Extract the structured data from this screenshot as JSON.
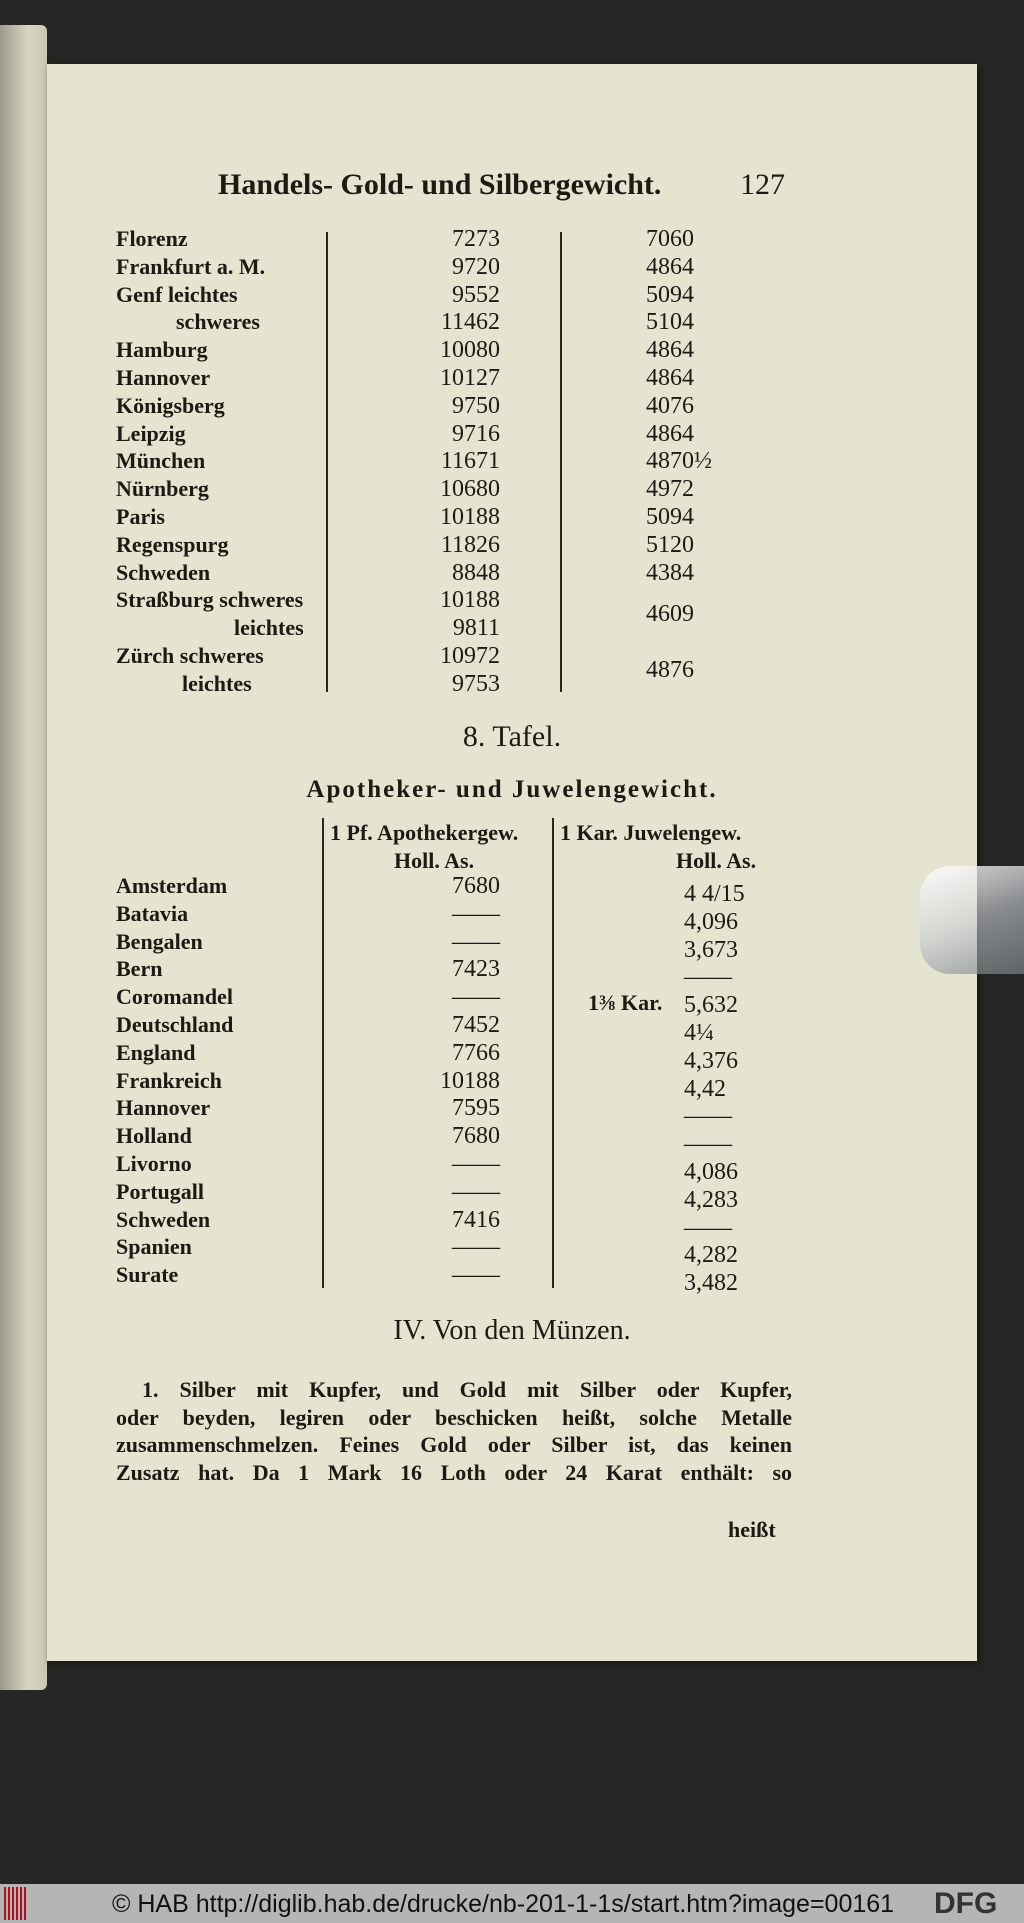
{
  "header": {
    "title": "Handels- Gold- und Silbergewicht.",
    "page_number": "127"
  },
  "table1": {
    "rows": [
      {
        "name": "Florenz",
        "v1": "7273",
        "v2": "7060"
      },
      {
        "name": "Frankfurt a. M.",
        "v1": "9720",
        "v2": "4864"
      },
      {
        "name": "Genf leichtes",
        "v1": "9552",
        "v2": "5094"
      },
      {
        "name": "schweres",
        "v1": "11462",
        "v2": "5104"
      },
      {
        "name": "Hamburg",
        "v1": "10080",
        "v2": "4864"
      },
      {
        "name": "Hannover",
        "v1": "10127",
        "v2": "4864"
      },
      {
        "name": "Königsberg",
        "v1": "9750",
        "v2": "4076"
      },
      {
        "name": "Leipzig",
        "v1": "9716",
        "v2": "4864"
      },
      {
        "name": "München",
        "v1": "11671",
        "v2": "4870½"
      },
      {
        "name": "Nürnberg",
        "v1": "10680",
        "v2": "4972"
      },
      {
        "name": "Paris",
        "v1": "10188",
        "v2": "5094"
      },
      {
        "name": "Regenspurg",
        "v1": "11826",
        "v2": "5120"
      },
      {
        "name": "Schweden",
        "v1": "8848",
        "v2": "4384"
      },
      {
        "name": "Straßburg schweres",
        "v1": "10188",
        "v2": "4609"
      },
      {
        "name": "leichtes",
        "v1": "9811",
        "v2": ""
      },
      {
        "name": "Zürch schweres",
        "v1": "10972",
        "v2": "4876"
      },
      {
        "name": "leichtes",
        "v1": "9753",
        "v2": ""
      }
    ]
  },
  "table2": {
    "number_title": "8. Tafel.",
    "title": "Apotheker- und Juwelengewicht.",
    "col1_header": "1 Pf. Apothekergew.",
    "col1_unit": "Holl. As.",
    "col2_header": "1 Kar. Juwelengew.",
    "col2_unit": "Holl. As.",
    "rows": [
      {
        "name": "Amsterdam",
        "v1": "7680",
        "prefix": "",
        "v2": "4 4/15"
      },
      {
        "name": "Batavia",
        "v1": "——",
        "prefix": "",
        "v2": "4,096"
      },
      {
        "name": "Bengalen",
        "v1": "——",
        "prefix": "",
        "v2": "3,673"
      },
      {
        "name": "Bern",
        "v1": "7423",
        "prefix": "",
        "v2": "——"
      },
      {
        "name": "Coromandel",
        "v1": "——",
        "prefix": "1⅜ Kar.",
        "v2": "5,632"
      },
      {
        "name": "Deutschland",
        "v1": "7452",
        "prefix": "",
        "v2": "4¼"
      },
      {
        "name": "England",
        "v1": "7766",
        "prefix": "",
        "v2": "4,376"
      },
      {
        "name": "Frankreich",
        "v1": "10188",
        "prefix": "",
        "v2": "4,42"
      },
      {
        "name": "Hannover",
        "v1": "7595",
        "prefix": "",
        "v2": "——"
      },
      {
        "name": "Holland",
        "v1": "7680",
        "prefix": "",
        "v2": "——"
      },
      {
        "name": "Livorno",
        "v1": "——",
        "prefix": "",
        "v2": "4,086"
      },
      {
        "name": "Portugall",
        "v1": "——",
        "prefix": "",
        "v2": "4,283"
      },
      {
        "name": "Schweden",
        "v1": "7416",
        "prefix": "",
        "v2": "——"
      },
      {
        "name": "Spanien",
        "v1": "——",
        "prefix": "",
        "v2": "4,282"
      },
      {
        "name": "Surate",
        "v1": "——",
        "prefix": "",
        "v2": "3,482"
      }
    ]
  },
  "section": {
    "heading": "IV. Von den Münzen.",
    "lines": [
      "1. Silber mit Kupfer, und Gold mit Silber oder Kupfer,",
      "oder beyden, legiren oder beschicken heißt, solche Metalle",
      "zusammenschmelzen. Feines Gold oder Silber ist, das keinen",
      "Zusatz hat. Da 1 Mark 16 Loth oder 24 Karat enthält: so"
    ],
    "catchword": "heißt"
  },
  "footer": {
    "copyright": "© HAB http://diglib.hab.de/drucke/nb-201-1-1s/start.htm?image=00161",
    "dfg_logo": "DFG"
  }
}
